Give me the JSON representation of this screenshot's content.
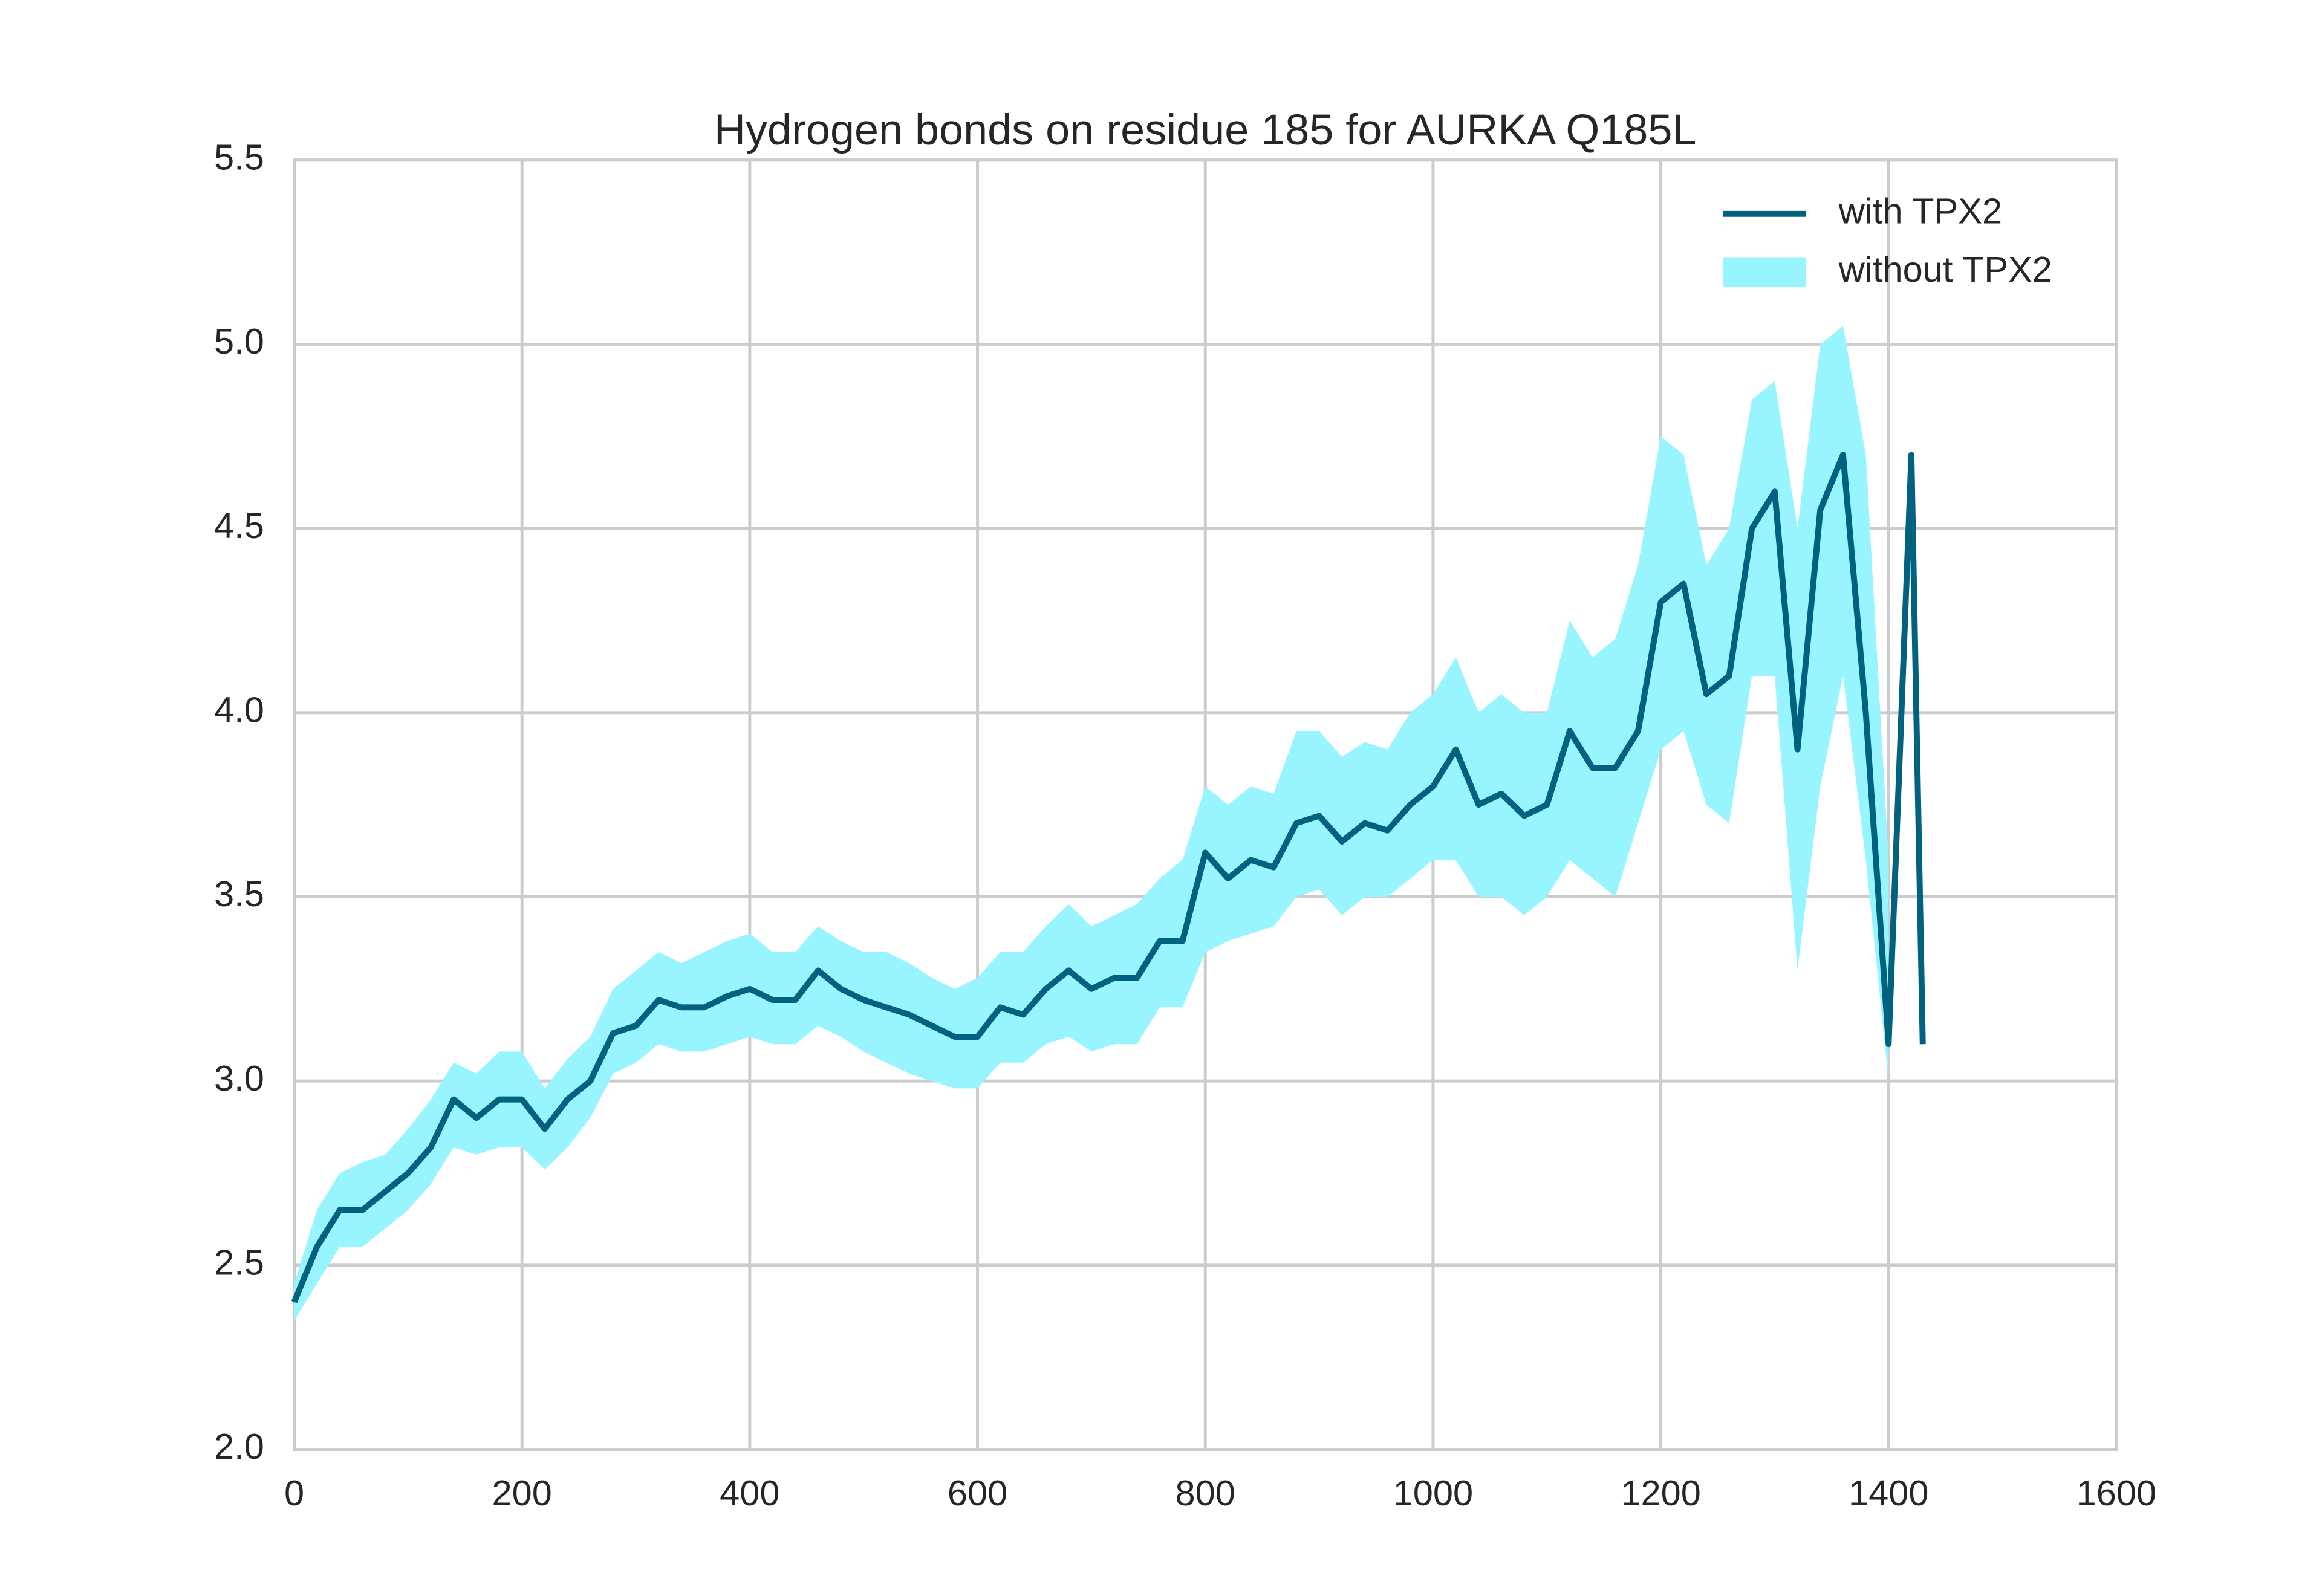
{
  "chart_data": {
    "type": "line",
    "title": "Hydrogen bonds on residue 185 for AURKA Q185L",
    "x": [
      0,
      20,
      40,
      60,
      80,
      100,
      120,
      140,
      160,
      180,
      200,
      220,
      240,
      260,
      280,
      300,
      320,
      340,
      360,
      380,
      400,
      420,
      440,
      460,
      480,
      500,
      520,
      540,
      560,
      580,
      600,
      620,
      640,
      660,
      680,
      700,
      720,
      740,
      760,
      780,
      800,
      820,
      840,
      860,
      880,
      900,
      920,
      940,
      960,
      980,
      1000,
      1020,
      1040,
      1060,
      1080,
      1100,
      1120,
      1140,
      1160,
      1180,
      1200,
      1220,
      1240,
      1260,
      1280,
      1300,
      1320,
      1340,
      1360,
      1380,
      1400,
      1420,
      1430
    ],
    "series": [
      {
        "name": "with TPX2",
        "color": "#00627f",
        "values": [
          2.4,
          2.55,
          2.65,
          2.65,
          2.7,
          2.75,
          2.82,
          2.95,
          2.9,
          2.95,
          2.95,
          2.87,
          2.95,
          3.0,
          3.13,
          3.15,
          3.22,
          3.2,
          3.2,
          3.23,
          3.25,
          3.22,
          3.22,
          3.3,
          3.25,
          3.22,
          3.2,
          3.18,
          3.15,
          3.12,
          3.12,
          3.2,
          3.18,
          3.25,
          3.3,
          3.25,
          3.28,
          3.28,
          3.38,
          3.38,
          3.62,
          3.55,
          3.6,
          3.58,
          3.7,
          3.72,
          3.65,
          3.7,
          3.68,
          3.75,
          3.8,
          3.9,
          3.75,
          3.78,
          3.72,
          3.75,
          3.95,
          3.85,
          3.85,
          3.95,
          4.3,
          4.35,
          4.05,
          4.1,
          4.5,
          4.6,
          3.9,
          4.55,
          4.7,
          4.0,
          3.1,
          4.7,
          3.1
        ]
      },
      {
        "name": "without TPX2",
        "color": "#98f5ff",
        "low": [
          2.35,
          2.45,
          2.55,
          2.55,
          2.6,
          2.65,
          2.72,
          2.82,
          2.8,
          2.82,
          2.82,
          2.76,
          2.82,
          2.9,
          3.02,
          3.05,
          3.1,
          3.08,
          3.08,
          3.1,
          3.12,
          3.1,
          3.1,
          3.15,
          3.12,
          3.08,
          3.05,
          3.02,
          3.0,
          2.98,
          2.98,
          3.05,
          3.05,
          3.1,
          3.12,
          3.08,
          3.1,
          3.1,
          3.2,
          3.2,
          3.35,
          3.38,
          3.4,
          3.42,
          3.5,
          3.52,
          3.45,
          3.5,
          3.5,
          3.55,
          3.6,
          3.6,
          3.5,
          3.5,
          3.45,
          3.5,
          3.6,
          3.55,
          3.5,
          3.7,
          3.9,
          3.95,
          3.75,
          3.7,
          4.1,
          4.1,
          3.3,
          3.8,
          4.1,
          3.6,
          3.0,
          null,
          null
        ],
        "high": [
          2.45,
          2.65,
          2.75,
          2.78,
          2.8,
          2.87,
          2.95,
          3.05,
          3.02,
          3.08,
          3.08,
          2.98,
          3.06,
          3.12,
          3.25,
          3.3,
          3.35,
          3.32,
          3.35,
          3.38,
          3.4,
          3.35,
          3.35,
          3.42,
          3.38,
          3.35,
          3.35,
          3.32,
          3.28,
          3.25,
          3.28,
          3.35,
          3.35,
          3.42,
          3.48,
          3.42,
          3.45,
          3.48,
          3.55,
          3.6,
          3.8,
          3.75,
          3.8,
          3.78,
          3.95,
          3.95,
          3.88,
          3.92,
          3.9,
          4.0,
          4.05,
          4.15,
          4.0,
          4.05,
          4.0,
          4.0,
          4.25,
          4.15,
          4.2,
          4.4,
          4.75,
          4.7,
          4.4,
          4.5,
          4.85,
          4.9,
          4.5,
          5.0,
          5.05,
          4.7,
          3.6,
          null,
          null
        ]
      }
    ],
    "xlim": [
      0,
      1600
    ],
    "ylim": [
      2.0,
      5.5
    ],
    "xticks": [
      0,
      200,
      400,
      600,
      800,
      1000,
      1200,
      1400,
      1600
    ],
    "yticks": [
      {
        "value": 2.0,
        "label": "2.0"
      },
      2.5,
      {
        "value": 3.0,
        "label": "3.0"
      },
      3.5,
      {
        "value": 4.0,
        "label": "4.0"
      },
      4.5,
      {
        "value": 5.0,
        "label": "5.0"
      },
      5.5
    ],
    "grid": true,
    "legend": "upper right"
  }
}
